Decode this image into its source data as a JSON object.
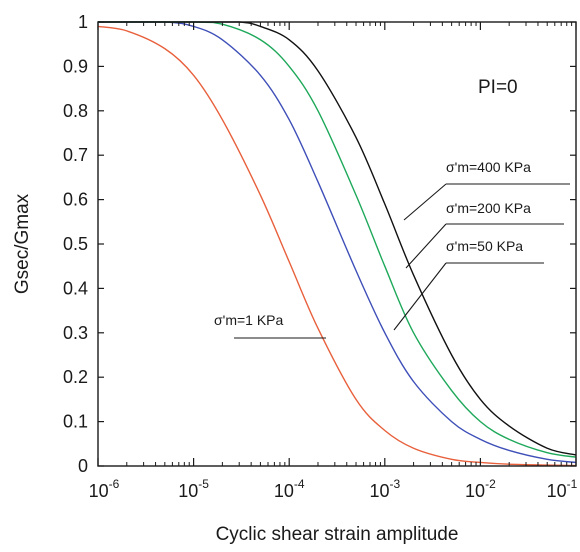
{
  "chart_data": {
    "type": "line",
    "title": "",
    "xlabel": "Cyclic shear strain amplitude",
    "ylabel": "Gsec/Gmax",
    "x_scale": "log",
    "xlim": [
      1e-06,
      0.1
    ],
    "ylim": [
      0,
      1
    ],
    "x_ticks": [
      {
        "base": "10",
        "exp": "-6",
        "value": 1e-06
      },
      {
        "base": "10",
        "exp": "-5",
        "value": 1e-05
      },
      {
        "base": "10",
        "exp": "-4",
        "value": 0.0001
      },
      {
        "base": "10",
        "exp": "-3",
        "value": 0.001
      },
      {
        "base": "10",
        "exp": "-2",
        "value": 0.01
      },
      {
        "base": "10",
        "exp": "-1",
        "value": 0.1
      }
    ],
    "y_ticks": [
      "0",
      "0.1",
      "0.2",
      "0.3",
      "0.4",
      "0.5",
      "0.6",
      "0.7",
      "0.8",
      "0.9",
      "1"
    ],
    "grid": false,
    "annotation_main": "PI=0",
    "series": [
      {
        "name": "σ'm=1 KPa",
        "color": "#e8603c",
        "x": [
          1e-06,
          2e-06,
          5e-06,
          1e-05,
          2e-05,
          5e-05,
          0.0001,
          0.0002,
          0.0005,
          0.001,
          0.002,
          0.005,
          0.01,
          0.02,
          0.05,
          0.1
        ],
        "y": [
          0.99,
          0.98,
          0.94,
          0.88,
          0.78,
          0.61,
          0.46,
          0.31,
          0.15,
          0.08,
          0.04,
          0.015,
          0.008,
          0.004,
          0.002,
          0.001
        ]
      },
      {
        "name": "σ'm=50 KPa",
        "color": "#3e4fb8",
        "x": [
          1e-06,
          5e-06,
          1e-05,
          2e-05,
          5e-05,
          0.0001,
          0.0002,
          0.0005,
          0.001,
          0.002,
          0.005,
          0.01,
          0.02,
          0.05,
          0.1
        ],
        "y": [
          1.0,
          1.0,
          0.99,
          0.96,
          0.88,
          0.78,
          0.64,
          0.44,
          0.3,
          0.19,
          0.1,
          0.06,
          0.035,
          0.015,
          0.008
        ]
      },
      {
        "name": "σ'm=200 KPa",
        "color": "#1ea85a",
        "x": [
          1e-06,
          1e-05,
          2e-05,
          5e-05,
          0.0001,
          0.0002,
          0.0005,
          0.001,
          0.002,
          0.005,
          0.01,
          0.02,
          0.05,
          0.1
        ],
        "y": [
          1.0,
          1.0,
          0.995,
          0.96,
          0.9,
          0.8,
          0.61,
          0.45,
          0.3,
          0.17,
          0.1,
          0.06,
          0.03,
          0.02
        ]
      },
      {
        "name": "σ'm=400 KPa",
        "color": "#111111",
        "x": [
          1e-06,
          1e-05,
          3e-05,
          5e-05,
          0.0001,
          0.0002,
          0.0005,
          0.001,
          0.002,
          0.005,
          0.01,
          0.02,
          0.05,
          0.1
        ],
        "y": [
          1.0,
          1.0,
          1.0,
          0.99,
          0.96,
          0.89,
          0.74,
          0.59,
          0.43,
          0.25,
          0.15,
          0.09,
          0.04,
          0.025
        ]
      }
    ],
    "labels": [
      {
        "text": "σ'm=400 KPa",
        "series": 3
      },
      {
        "text": "σ'm=200 KPa",
        "series": 2
      },
      {
        "text": "σ'm=50 KPa",
        "series": 1
      },
      {
        "text": "σ'm=1 KPa",
        "series": 0
      }
    ]
  }
}
